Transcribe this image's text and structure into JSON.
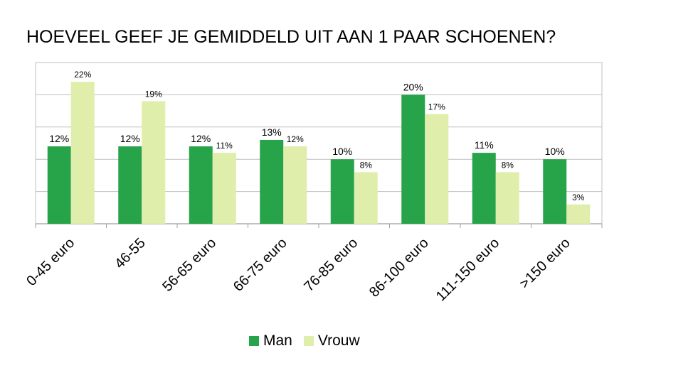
{
  "chart_data": {
    "type": "bar",
    "title": "HOEVEEL GEEF JE GEMIDDELD UIT AAN 1 PAAR SCHOENEN?",
    "categories": [
      "0-45 euro",
      "46-55",
      "56-65 euro",
      "66-75 euro",
      "76-85 euro",
      "86-100 euro",
      "111-150 euro",
      ">150 euro"
    ],
    "series": [
      {
        "name": "Man",
        "values": [
          12,
          12,
          12,
          13,
          10,
          20,
          11,
          10
        ],
        "labels": [
          "12%",
          "12%",
          "12%",
          "13%",
          "10%",
          "20%",
          "11%",
          "10%"
        ],
        "color": "#27a34a"
      },
      {
        "name": "Vrouw",
        "values": [
          22,
          19,
          11,
          12,
          8,
          17,
          8,
          3
        ],
        "labels": [
          "22%",
          "19%",
          "11%",
          "12%",
          "8%",
          "17%",
          "8%",
          "3%"
        ],
        "color": "#dfeeab"
      }
    ],
    "ylim": [
      0,
      25
    ],
    "grid": true,
    "legend": "bottom"
  }
}
